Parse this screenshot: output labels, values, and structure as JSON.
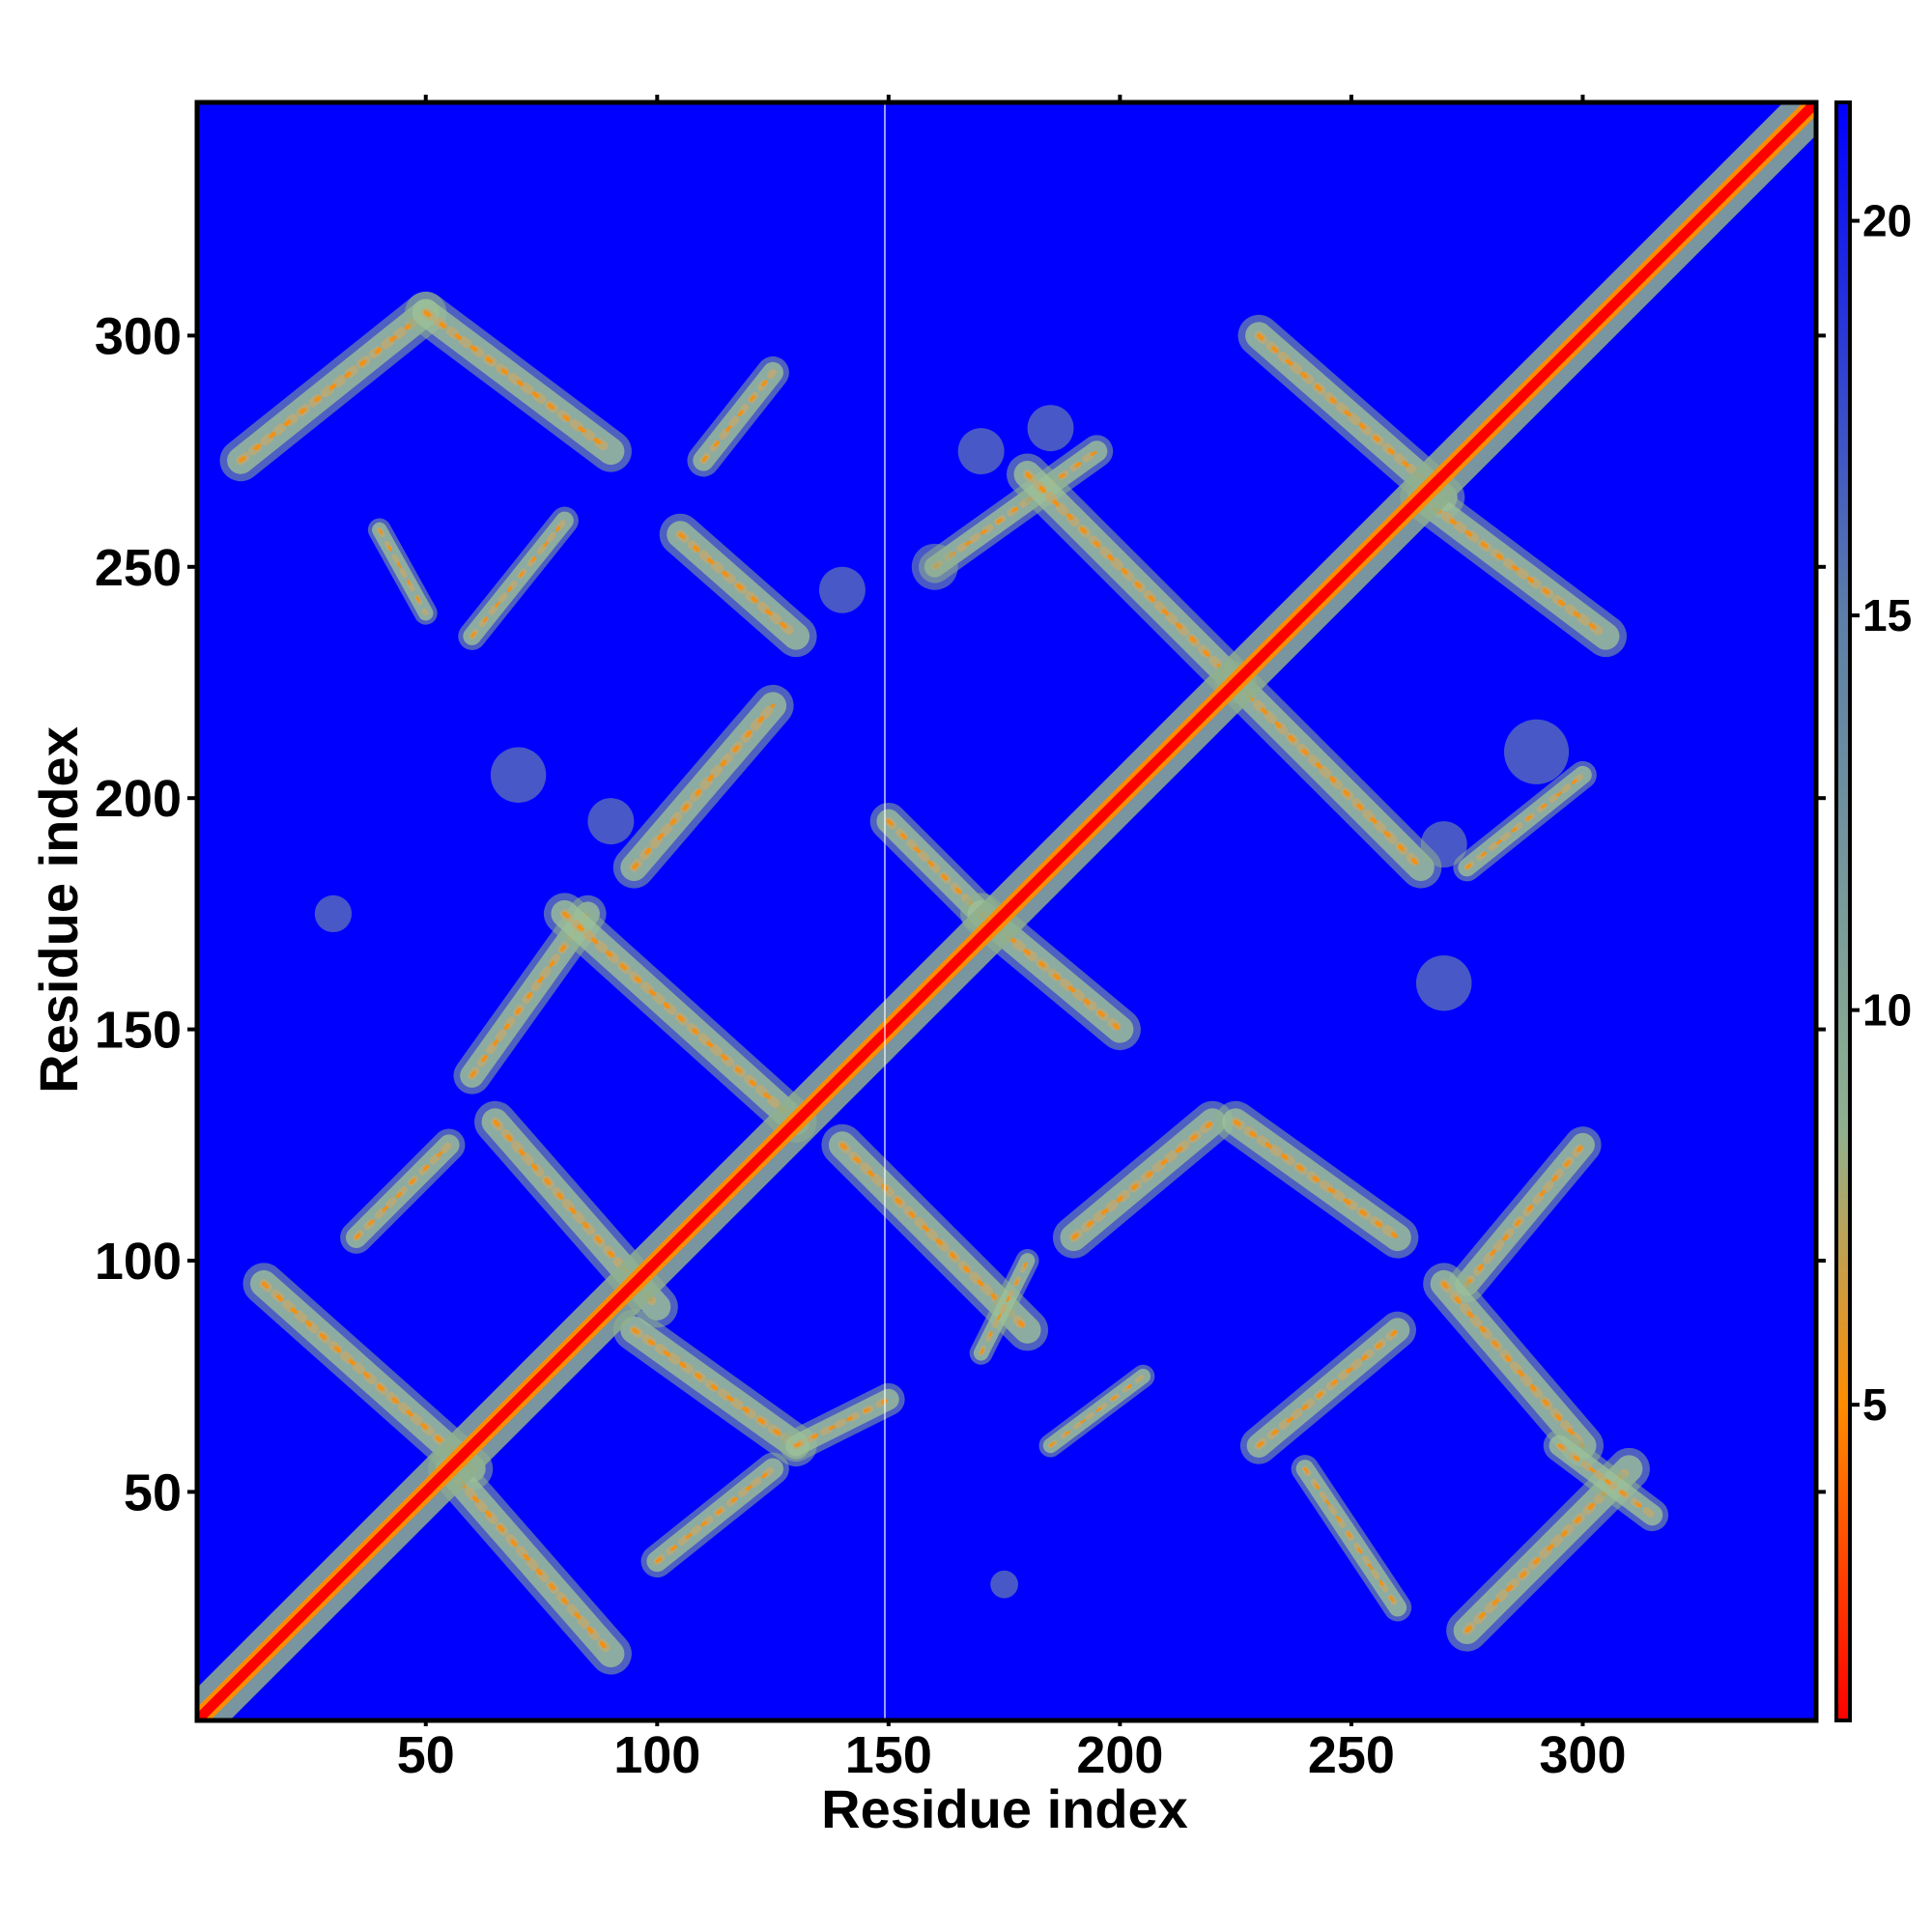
{
  "chart_data": {
    "type": "heatmap",
    "subtype": "residue-distance-map",
    "title": "",
    "xlabel": "Residue index",
    "ylabel": "Residue index",
    "xlim": [
      1,
      350
    ],
    "ylim": [
      1,
      350
    ],
    "x_ticks": [
      50,
      100,
      150,
      200,
      250,
      300
    ],
    "y_ticks": [
      50,
      100,
      150,
      200,
      250,
      300
    ],
    "grid": false,
    "colorbar": {
      "placement": "right",
      "range": [
        1,
        21.5
      ],
      "ticks": [
        5,
        10,
        15,
        20
      ],
      "colors": [
        "#ff0000",
        "#ff8c00",
        "#8fb08f",
        "#5b7fa8",
        "#0000ff"
      ],
      "stops": [
        1,
        5,
        8.5,
        15,
        21.5
      ]
    },
    "background_color": "#0000ff",
    "diagonal": {
      "from": [
        1,
        1
      ],
      "to": [
        350,
        350
      ],
      "core_color": "#ff0000",
      "edge_color": "#ff8c00",
      "halo_color": "#8fb08f"
    },
    "contact_bands": [
      {
        "x1": 10,
        "y1": 273,
        "x2": 50,
        "y2": 305,
        "w": 9
      },
      {
        "x1": 50,
        "y1": 305,
        "x2": 90,
        "y2": 275,
        "w": 9
      },
      {
        "x1": 110,
        "y1": 273,
        "x2": 125,
        "y2": 292,
        "w": 7
      },
      {
        "x1": 105,
        "y1": 257,
        "x2": 130,
        "y2": 235,
        "w": 9
      },
      {
        "x1": 60,
        "y1": 235,
        "x2": 80,
        "y2": 260,
        "w": 6
      },
      {
        "x1": 40,
        "y1": 258,
        "x2": 50,
        "y2": 240,
        "w": 5
      },
      {
        "x1": 95,
        "y1": 185,
        "x2": 125,
        "y2": 220,
        "w": 9
      },
      {
        "x1": 60,
        "y1": 140,
        "x2": 85,
        "y2": 175,
        "w": 8
      },
      {
        "x1": 80,
        "y1": 175,
        "x2": 130,
        "y2": 130,
        "w": 9
      },
      {
        "x1": 65,
        "y1": 130,
        "x2": 100,
        "y2": 90,
        "w": 9
      },
      {
        "x1": 35,
        "y1": 105,
        "x2": 55,
        "y2": 125,
        "w": 7
      },
      {
        "x1": 15,
        "y1": 95,
        "x2": 60,
        "y2": 55,
        "w": 9
      },
      {
        "x1": 55,
        "y1": 55,
        "x2": 90,
        "y2": 15,
        "w": 9
      },
      {
        "x1": 95,
        "y1": 85,
        "x2": 130,
        "y2": 60,
        "w": 9
      },
      {
        "x1": 130,
        "y1": 60,
        "x2": 150,
        "y2": 70,
        "w": 7
      },
      {
        "x1": 100,
        "y1": 35,
        "x2": 125,
        "y2": 55,
        "w": 7
      },
      {
        "x1": 140,
        "y1": 125,
        "x2": 180,
        "y2": 85,
        "w": 9
      },
      {
        "x1": 170,
        "y1": 80,
        "x2": 180,
        "y2": 100,
        "w": 5
      },
      {
        "x1": 190,
        "y1": 105,
        "x2": 220,
        "y2": 130,
        "w": 9
      },
      {
        "x1": 150,
        "y1": 195,
        "x2": 170,
        "y2": 175,
        "w": 8
      },
      {
        "x1": 170,
        "y1": 175,
        "x2": 200,
        "y2": 150,
        "w": 9
      },
      {
        "x1": 160,
        "y1": 250,
        "x2": 195,
        "y2": 275,
        "w": 7
      },
      {
        "x1": 180,
        "y1": 270,
        "x2": 225,
        "y2": 225,
        "w": 9
      },
      {
        "x1": 225,
        "y1": 225,
        "x2": 265,
        "y2": 185,
        "w": 9
      },
      {
        "x1": 230,
        "y1": 300,
        "x2": 270,
        "y2": 265,
        "w": 9
      },
      {
        "x1": 265,
        "y1": 265,
        "x2": 305,
        "y2": 235,
        "w": 9
      },
      {
        "x1": 225,
        "y1": 130,
        "x2": 260,
        "y2": 105,
        "w": 9
      },
      {
        "x1": 275,
        "y1": 95,
        "x2": 300,
        "y2": 125,
        "w": 8
      },
      {
        "x1": 275,
        "y1": 20,
        "x2": 310,
        "y2": 55,
        "w": 9
      },
      {
        "x1": 270,
        "y1": 95,
        "x2": 300,
        "y2": 60,
        "w": 9
      },
      {
        "x1": 230,
        "y1": 60,
        "x2": 260,
        "y2": 85,
        "w": 8
      },
      {
        "x1": 240,
        "y1": 55,
        "x2": 260,
        "y2": 25,
        "w": 6
      },
      {
        "x1": 275,
        "y1": 185,
        "x2": 300,
        "y2": 205,
        "w": 6
      },
      {
        "x1": 185,
        "y1": 60,
        "x2": 205,
        "y2": 75,
        "w": 5
      },
      {
        "x1": 295,
        "y1": 60,
        "x2": 315,
        "y2": 45,
        "w": 7
      }
    ],
    "sparse_patches": [
      {
        "x": 30,
        "y": 175,
        "r": 4
      },
      {
        "x": 70,
        "y": 205,
        "r": 6
      },
      {
        "x": 170,
        "y": 275,
        "r": 5
      },
      {
        "x": 185,
        "y": 280,
        "r": 5
      },
      {
        "x": 160,
        "y": 250,
        "r": 5
      },
      {
        "x": 270,
        "y": 160,
        "r": 6
      },
      {
        "x": 290,
        "y": 210,
        "r": 7
      },
      {
        "x": 270,
        "y": 190,
        "r": 5
      },
      {
        "x": 175,
        "y": 30,
        "r": 3
      },
      {
        "x": 140,
        "y": 245,
        "r": 5
      },
      {
        "x": 90,
        "y": 195,
        "r": 5
      }
    ]
  }
}
